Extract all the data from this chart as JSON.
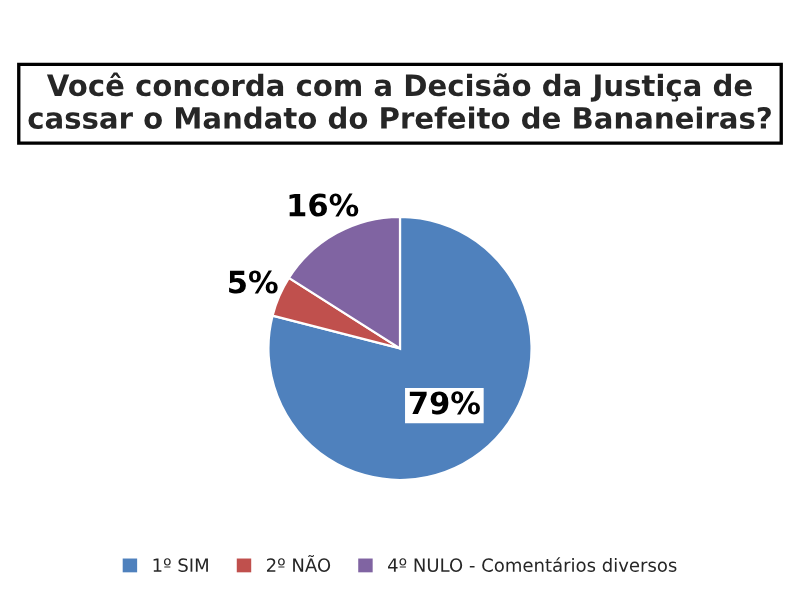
{
  "chart_data": {
    "type": "pie",
    "title": "Você concorda com a Decisão da Justiça de cassar o Mandato do Prefeito de Bananeiras?",
    "categories": [
      "1º SIM",
      "2º NÃO",
      "4º NULO - Comentários diversos"
    ],
    "values": [
      79,
      5,
      16
    ],
    "colors": [
      "#4f81bd",
      "#c0504d",
      "#8064a2"
    ],
    "value_labels": [
      "79%",
      "5%",
      "16%"
    ],
    "legend": "bottom"
  }
}
